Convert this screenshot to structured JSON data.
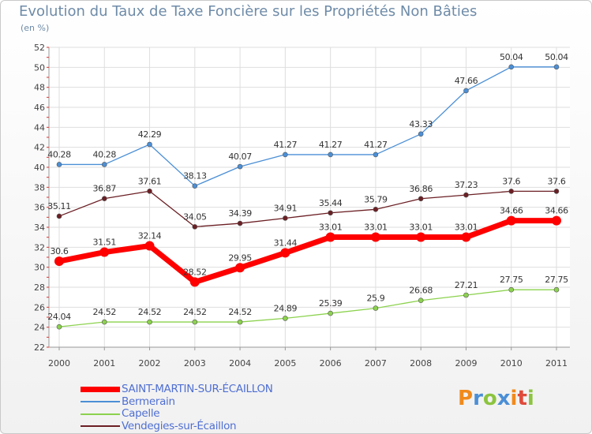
{
  "header": {
    "title": "Evolution du Taux de Taxe Foncière sur les Propriétés Non Bâties",
    "subtitle": "(en %)"
  },
  "logo": {
    "letters": [
      "P",
      "r",
      "o",
      "x",
      "i",
      "t",
      "i"
    ],
    "colors": [
      "#f08a1c",
      "#4b8fd6",
      "#8cc43f",
      "#4b8fd6",
      "#f08a1c",
      "#e04a3a",
      "#8cc43f"
    ]
  },
  "chart_data": {
    "type": "line",
    "x": [
      "2000",
      "2001",
      "2002",
      "2003",
      "2004",
      "2005",
      "2006",
      "2007",
      "2008",
      "2009",
      "2010",
      "2011"
    ],
    "ylim": [
      22,
      52
    ],
    "yticks": [
      "22",
      "24",
      "26",
      "28",
      "30",
      "32",
      "34",
      "36",
      "38",
      "40",
      "42",
      "44",
      "46",
      "48",
      "50",
      "52"
    ],
    "grid": true,
    "legend_position": "bottom-left",
    "series": [
      {
        "name": "Bermerain",
        "color": "#4b8fd6",
        "values": [
          40.28,
          40.28,
          42.29,
          38.13,
          40.07,
          41.27,
          41.27,
          41.27,
          43.33,
          47.66,
          50.04,
          50.04
        ],
        "labels": [
          "40.28",
          "40.28",
          "42.29",
          "38.13",
          "40.07",
          "41.27",
          "41.27",
          "41.27",
          "43.33",
          "47.66",
          "50.04",
          "50.04"
        ]
      },
      {
        "name": "Vendegies-sur-Écaillon",
        "color": "#6b1f24",
        "values": [
          35.11,
          36.87,
          37.61,
          34.05,
          34.39,
          34.91,
          35.44,
          35.79,
          36.86,
          37.23,
          37.6,
          37.6
        ],
        "labels": [
          "35.11",
          "36.87",
          "37.61",
          "34.05",
          "34.39",
          "34.91",
          "35.44",
          "35.79",
          "36.86",
          "37.23",
          "37.6",
          "37.6"
        ]
      },
      {
        "name": "SAINT-MARTIN-SUR-ÉCAILLON",
        "color": "#ff0000",
        "values": [
          30.6,
          31.51,
          32.14,
          28.52,
          29.95,
          31.44,
          33.01,
          33.01,
          33.01,
          33.01,
          34.66,
          34.66
        ],
        "labels": [
          "30.6",
          "31.51",
          "32.14",
          "28.52",
          "29.95",
          "31.44",
          "33.01",
          "33.01",
          "33.01",
          "33.01",
          "34.66",
          "34.66"
        ]
      },
      {
        "name": "Capelle",
        "color": "#8cd24e",
        "values": [
          24.04,
          24.52,
          24.52,
          24.52,
          24.52,
          24.89,
          25.39,
          25.9,
          26.68,
          27.21,
          27.75,
          27.75
        ],
        "labels": [
          "24.04",
          "24.52",
          "24.52",
          "24.52",
          "24.52",
          "24.89",
          "25.39",
          "25.9",
          "26.68",
          "27.21",
          "27.75",
          "27.75"
        ]
      }
    ],
    "legend": [
      {
        "name": "SAINT-MARTIN-SUR-ÉCAILLON",
        "color": "#ff0000"
      },
      {
        "name": "Bermerain",
        "color": "#4b8fd6"
      },
      {
        "name": "Capelle",
        "color": "#8cd24e"
      },
      {
        "name": "Vendegies-sur-Écaillon",
        "color": "#6b1f24"
      }
    ]
  }
}
